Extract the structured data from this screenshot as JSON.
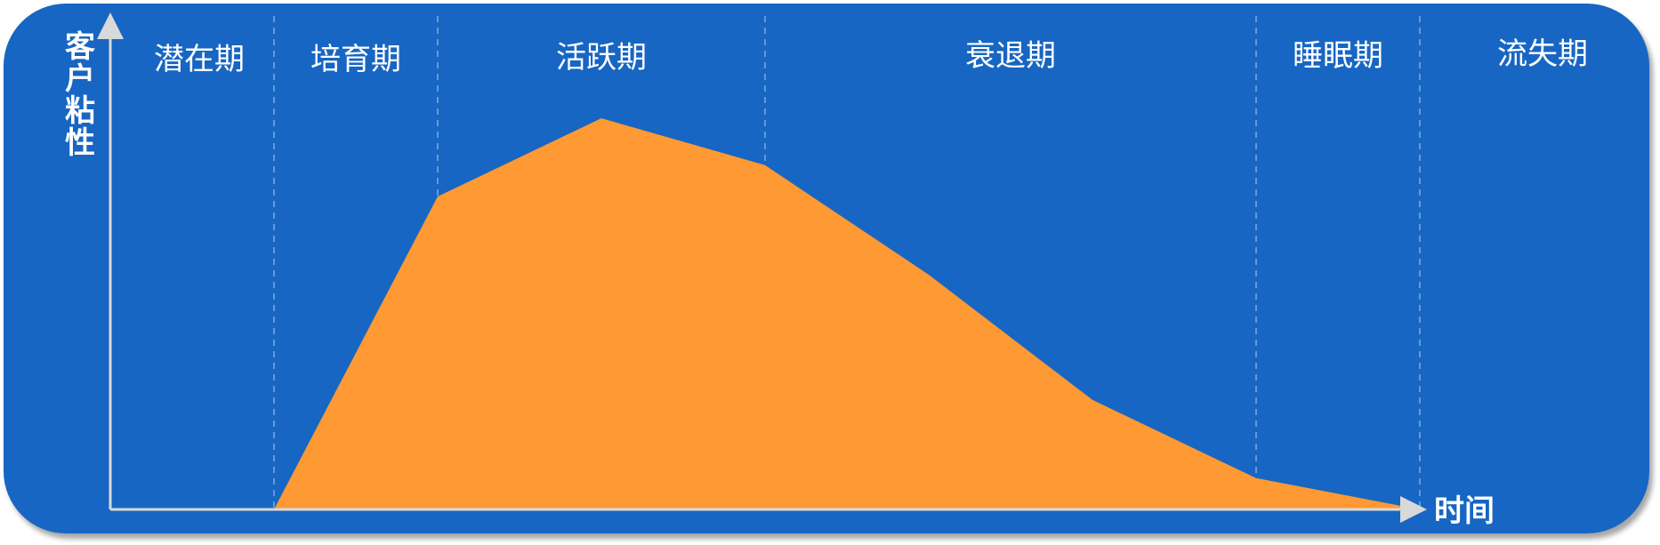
{
  "chart_data": {
    "type": "area",
    "title": "",
    "xlabel": "时间",
    "ylabel": "客户粘性",
    "stages": [
      "潜在期",
      "培育期",
      "活跃期",
      "衰退期",
      "睡眠期",
      "流失期"
    ],
    "stage_boundaries": [
      0,
      1,
      2,
      4,
      7,
      8,
      9.5
    ],
    "x": [
      1,
      2,
      3,
      4,
      5,
      6,
      7,
      8
    ],
    "y": [
      0,
      80,
      100,
      88,
      60,
      28,
      8,
      0
    ],
    "xlim": [
      0,
      9.5
    ],
    "ylim": [
      0,
      115
    ],
    "grid": "dashed vertical stage separators",
    "legend": "none"
  },
  "colors": {
    "background": "#1766C3",
    "area": "#FF9933",
    "axis": "#D9D9D9",
    "text": "#FFFFFF"
  }
}
